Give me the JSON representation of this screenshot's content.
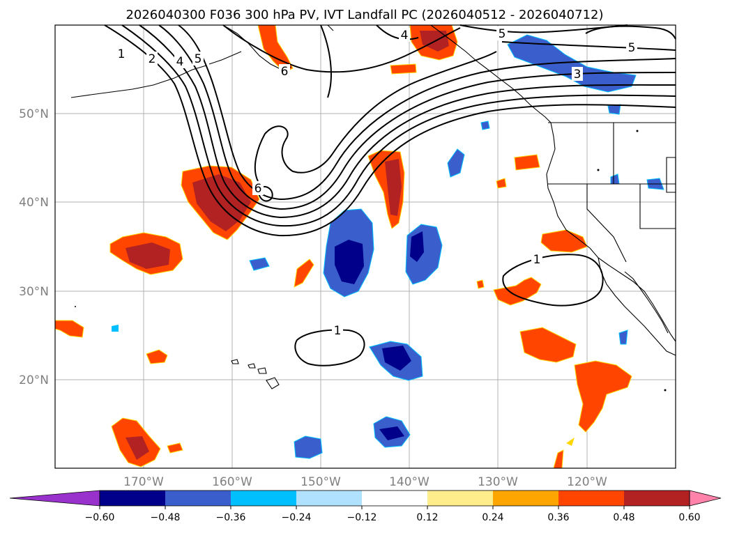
{
  "title": "2026040300 F036 300 hPa PV, IVT Landfall PC (2026040512 - 2026040712)",
  "map": {
    "lat_labels": [
      "50°N",
      "40°N",
      "30°N",
      "20°N"
    ],
    "lon_labels": [
      "170°W",
      "160°W",
      "150°W",
      "140°W",
      "130°W",
      "120°W"
    ],
    "lat_range": [
      10,
      60
    ],
    "lon_range": [
      -180,
      -110
    ]
  },
  "contour_labels": [
    {
      "id": "pv-1-north",
      "text": "1"
    },
    {
      "id": "pv-2",
      "text": "2"
    },
    {
      "id": "pv-4",
      "text": "4"
    },
    {
      "id": "pv-5-west",
      "text": "5"
    },
    {
      "id": "pv-6-aleutian",
      "text": "6"
    },
    {
      "id": "pv-6-trough",
      "text": "6"
    },
    {
      "id": "pv-4-top",
      "text": "4"
    },
    {
      "id": "pv-5-top",
      "text": "5"
    },
    {
      "id": "pv-5-east",
      "text": "5"
    },
    {
      "id": "pv-3",
      "text": "3"
    },
    {
      "id": "pv-1-cutoff",
      "text": "1"
    },
    {
      "id": "pv-1-south",
      "text": "1"
    }
  ],
  "colorbar": {
    "ticks": [
      "−0.60",
      "−0.48",
      "−0.36",
      "−0.24",
      "−0.12",
      "0.12",
      "0.24",
      "0.36",
      "0.48",
      "0.60"
    ],
    "colors": [
      "#9932cc",
      "#00008b",
      "#3a5fcd",
      "#00bfff",
      "#b0e2ff",
      "#ffffff",
      "#ffec8b",
      "#ffa500",
      "#ff4500",
      "#b22222",
      "#ff82ab"
    ]
  }
}
